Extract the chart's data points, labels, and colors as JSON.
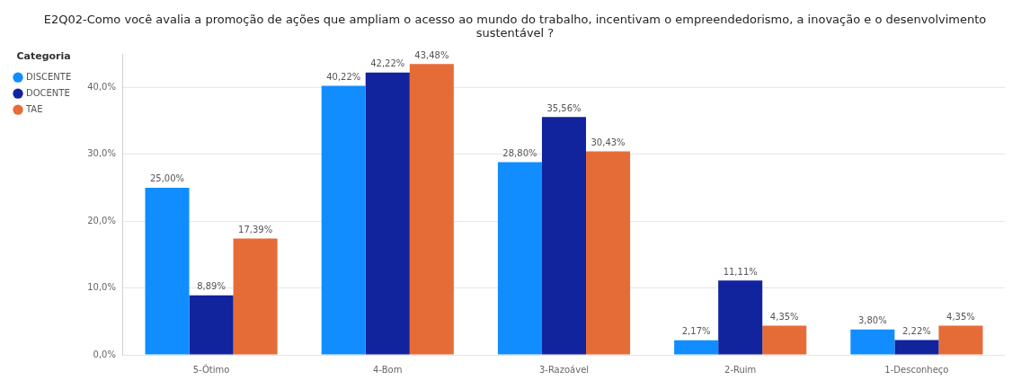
{
  "chart_data": {
    "type": "bar",
    "title": "E2Q02-Como você avalia a promoção de ações que ampliam o acesso ao mundo do trabalho, incentivam o empreendedorismo, a inovação e o desenvolvimento sustentável ?",
    "legend_title": "Categoria",
    "categories": [
      "5-Ótimo",
      "4-Bom",
      "3-Razoável",
      "2-Ruim",
      "1-Desconheço"
    ],
    "series": [
      {
        "name": "DISCENTE",
        "color": "#118dff",
        "values": [
          25.0,
          40.22,
          28.8,
          2.17,
          3.8
        ],
        "value_labels": [
          "25,00%",
          "40,22%",
          "28,80%",
          "2,17%",
          "3,80%"
        ]
      },
      {
        "name": "DOCENTE",
        "color": "#12239e",
        "values": [
          8.89,
          42.22,
          35.56,
          11.11,
          2.22
        ],
        "value_labels": [
          "8,89%",
          "42,22%",
          "35,56%",
          "11,11%",
          "2,22%"
        ]
      },
      {
        "name": "TAE",
        "color": "#e66c37",
        "values": [
          17.39,
          43.48,
          30.43,
          4.35,
          4.35
        ],
        "value_labels": [
          "17,39%",
          "43,48%",
          "30,43%",
          "4,35%",
          "4,35%"
        ]
      }
    ],
    "ylim": [
      0,
      45
    ],
    "yticks": [
      {
        "value": 0,
        "label": "0,0%"
      },
      {
        "value": 10,
        "label": "10,0%"
      },
      {
        "value": 20,
        "label": "20,0%"
      },
      {
        "value": 30,
        "label": "30,0%"
      },
      {
        "value": 40,
        "label": "40,0%"
      }
    ],
    "grid": "y",
    "legend": "top left"
  }
}
